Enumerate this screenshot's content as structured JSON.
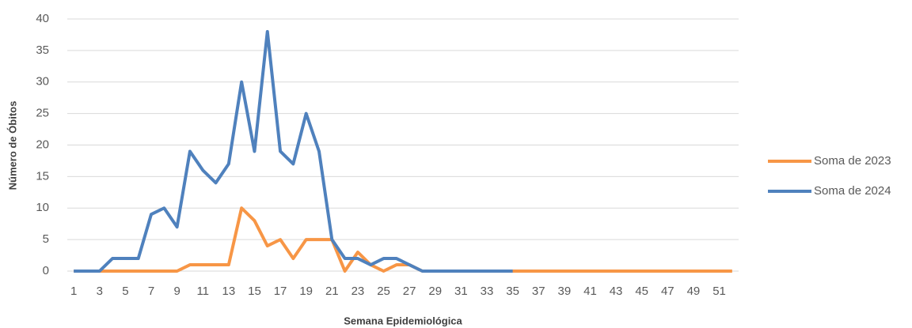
{
  "chart_data": {
    "type": "line",
    "x_label": "Semana Epidemiológica",
    "y_label": "Número de Óbitos",
    "categories": [
      "1",
      null,
      "3",
      null,
      "5",
      null,
      "7",
      null,
      "9",
      null,
      "11",
      null,
      "13",
      null,
      "15",
      null,
      "17",
      null,
      "19",
      null,
      "21",
      null,
      "23",
      null,
      "25",
      null,
      "27",
      null,
      "29",
      null,
      "31",
      null,
      "33",
      null,
      "35",
      null,
      "37",
      null,
      "39",
      null,
      "41",
      null,
      "43",
      null,
      "45",
      null,
      "47",
      null,
      "49",
      null,
      "51",
      null
    ],
    "series": [
      {
        "name": "Soma de 2023",
        "color": "#f79646",
        "values": [
          0,
          0,
          0,
          0,
          0,
          0,
          0,
          0,
          0,
          1,
          1,
          1,
          1,
          10,
          8,
          4,
          5,
          2,
          5,
          5,
          5,
          0,
          3,
          1,
          0,
          1,
          1,
          0,
          0,
          0,
          0,
          0,
          0,
          0,
          0,
          0,
          0,
          0,
          0,
          0,
          0,
          0,
          0,
          0,
          0,
          0,
          0,
          0,
          0,
          0,
          0,
          0
        ]
      },
      {
        "name": "Soma de 2024",
        "color": "#4f81bd",
        "values": [
          0,
          0,
          0,
          2,
          2,
          2,
          9,
          10,
          7,
          19,
          16,
          14,
          17,
          30,
          19,
          38,
          19,
          17,
          25,
          19,
          5,
          2,
          2,
          1,
          2,
          2,
          1,
          0,
          0,
          0,
          0,
          0,
          0,
          0,
          0,
          null,
          null,
          null,
          null,
          null,
          null,
          null,
          null,
          null,
          null,
          null,
          null,
          null,
          null,
          null,
          null,
          null
        ]
      }
    ],
    "ylim": [
      0,
      40
    ],
    "yticks": [
      0,
      5,
      10,
      15,
      20,
      25,
      30,
      35,
      40
    ],
    "grid": true,
    "legend": "right"
  }
}
